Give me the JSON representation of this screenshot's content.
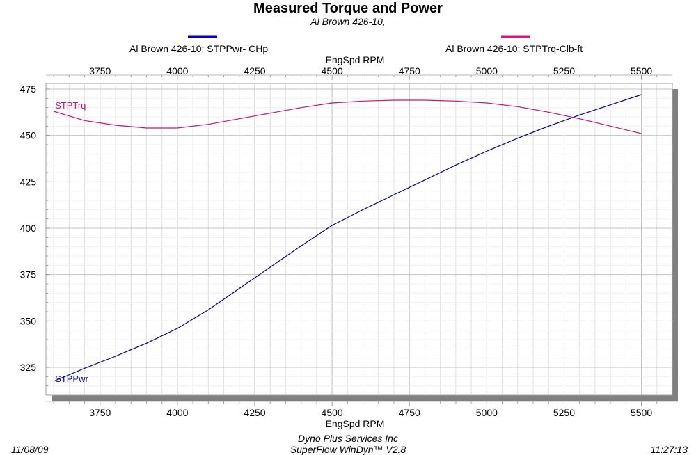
{
  "chart_data": {
    "type": "line",
    "title": "Measured Torque and Power",
    "subtitle": "Al Brown 426-10,",
    "xlabel": "EngSpd  RPM",
    "xlim": [
      3575,
      5600
    ],
    "ylim": [
      310,
      478
    ],
    "x_ticks": [
      3750,
      4000,
      4250,
      4500,
      4750,
      5000,
      5250,
      5500
    ],
    "y_ticks": [
      325,
      350,
      375,
      400,
      425,
      450,
      475
    ],
    "grid": true,
    "series": [
      {
        "name": "Al Brown 426-10: STPPwr- CHp",
        "label": "STPPwr",
        "color": "#00008b",
        "legend_color": "#0000cc",
        "x": [
          3600,
          3700,
          3800,
          3900,
          4000,
          4100,
          4200,
          4300,
          4400,
          4500,
          4600,
          4700,
          4800,
          4900,
          5000,
          5100,
          5200,
          5300,
          5400,
          5500
        ],
        "y": [
          317.5,
          324.5,
          331,
          338,
          346,
          356,
          367.5,
          379,
          390.5,
          401.5,
          410,
          418,
          426,
          434,
          441.5,
          448.5,
          455,
          461,
          466.5,
          472
        ]
      },
      {
        "name": "Al Brown 426-10: STPTrq-Clb-ft",
        "label": "STPTrq",
        "color": "#cc1177",
        "legend_color": "#dd1188",
        "x": [
          3600,
          3700,
          3800,
          3900,
          4000,
          4100,
          4200,
          4300,
          4400,
          4500,
          4600,
          4700,
          4800,
          4900,
          5000,
          5100,
          5200,
          5300,
          5400,
          5500
        ],
        "y": [
          463,
          458,
          455.5,
          454,
          454,
          456,
          459,
          462,
          465,
          467.5,
          468.5,
          469,
          469,
          468.5,
          467.5,
          465.5,
          462.5,
          459,
          455,
          451
        ]
      }
    ]
  },
  "footer": {
    "date": "11/08/09",
    "time": "11:27:13",
    "company": "Dyno Plus Services Inc",
    "software": "SuperFlow WinDyn™ V2.8"
  }
}
